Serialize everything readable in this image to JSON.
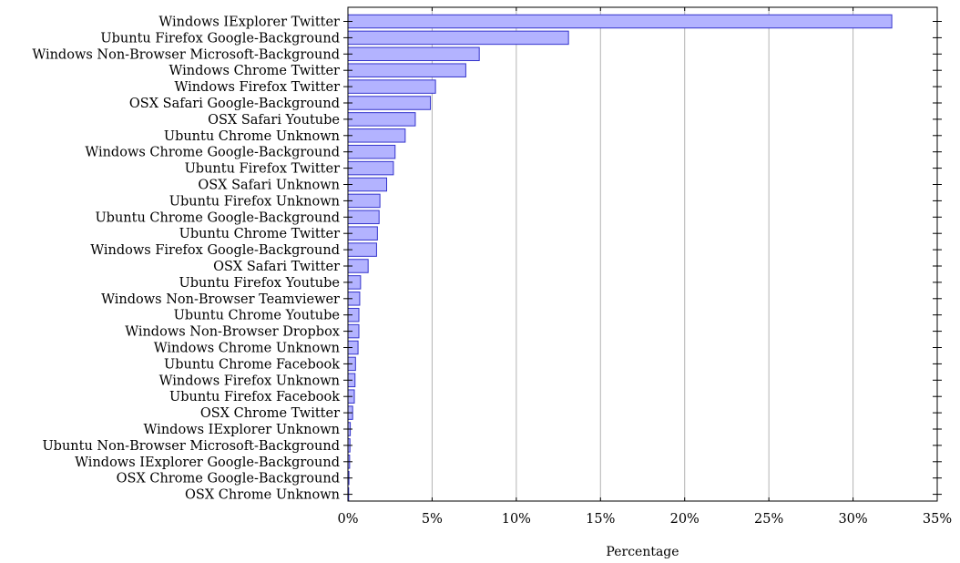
{
  "chart_data": {
    "type": "bar",
    "orientation": "horizontal",
    "xlabel": "Percentage",
    "xlim": [
      0,
      35
    ],
    "x_ticks": [
      0,
      5,
      10,
      15,
      20,
      25,
      30,
      35
    ],
    "tick_suffix": "%",
    "grid": "vertical",
    "bar_color": "#b3b3ff",
    "bar_edge_color": "#3333cc",
    "categories": [
      "Windows IExplorer Twitter",
      "Ubuntu Firefox Google-Background",
      "Windows Non-Browser Microsoft-Background",
      "Windows Chrome Twitter",
      "Windows Firefox Twitter",
      "OSX Safari Google-Background",
      "OSX Safari Youtube",
      "Ubuntu Chrome Unknown",
      "Windows Chrome Google-Background",
      "Ubuntu Firefox Twitter",
      "OSX Safari Unknown",
      "Ubuntu Firefox Unknown",
      "Ubuntu Chrome Google-Background",
      "Ubuntu Chrome Twitter",
      "Windows Firefox Google-Background",
      "OSX Safari Twitter",
      "Ubuntu Firefox Youtube",
      "Windows Non-Browser Teamviewer",
      "Ubuntu Chrome Youtube",
      "Windows Non-Browser Dropbox",
      "Windows Chrome Unknown",
      "Ubuntu Chrome Facebook",
      "Windows Firefox Unknown",
      "Ubuntu Firefox Facebook",
      "OSX Chrome Twitter",
      "Windows IExplorer Unknown",
      "Ubuntu Non-Browser Microsoft-Background",
      "Windows IExplorer Google-Background",
      "OSX Chrome Google-Background",
      "OSX Chrome Unknown"
    ],
    "values": [
      32.3,
      13.1,
      7.8,
      7.0,
      5.2,
      4.9,
      4.0,
      3.4,
      2.8,
      2.7,
      2.3,
      1.9,
      1.85,
      1.75,
      1.7,
      1.2,
      0.75,
      0.7,
      0.65,
      0.65,
      0.6,
      0.45,
      0.42,
      0.38,
      0.28,
      0.14,
      0.12,
      0.1,
      0.06,
      0.03
    ]
  }
}
